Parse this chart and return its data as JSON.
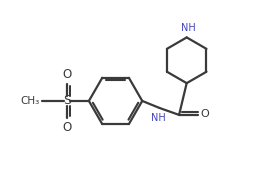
{
  "bg_color": "#ffffff",
  "line_color": "#3a3a3a",
  "text_color": "#3a3a3a",
  "nh_color": "#4444bb",
  "figsize": [
    2.54,
    1.79
  ],
  "dpi": 100,
  "xlim": [
    0,
    10
  ],
  "ylim": [
    0,
    7
  ]
}
